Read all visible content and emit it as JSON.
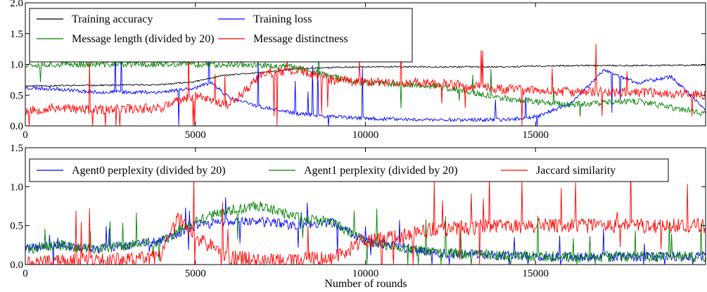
{
  "xlabel": "Number of rounds",
  "chart_data": [
    {
      "type": "line",
      "xlim": [
        0,
        20000
      ],
      "ylim": [
        0,
        2.0
      ],
      "x_ticks": [
        0,
        5000,
        10000,
        15000
      ],
      "y_ticks": [
        0.0,
        0.5,
        1.0,
        1.5,
        2.0
      ],
      "x_tick_labels": [
        "0",
        "5000",
        "10000",
        "15000"
      ],
      "y_tick_labels": [
        "0.0",
        "0.5",
        "1.0",
        "1.5",
        "2.0"
      ],
      "legend_position": "top-left",
      "legend_columns": 2,
      "grid": false,
      "series": [
        {
          "name": "Training accuracy",
          "color": "#000000",
          "seed": 11,
          "noise": 0.012,
          "spike_prob": 0.0,
          "spike_amp": 0.0,
          "x": [
            0,
            2000,
            4000,
            5000,
            5800,
            6500,
            7000,
            8000,
            9000,
            10000,
            12000,
            14000,
            16000,
            18000,
            20000
          ],
          "y": [
            0.65,
            0.66,
            0.67,
            0.72,
            0.82,
            0.85,
            0.87,
            0.93,
            0.95,
            0.96,
            0.96,
            0.96,
            0.98,
            0.98,
            0.99
          ]
        },
        {
          "name": "Training loss",
          "color": "#0000ff",
          "seed": 23,
          "noise": 0.03,
          "spike_prob": 0.012,
          "spike_amp": 0.6,
          "x": [
            0,
            1000,
            2000,
            4000,
            5000,
            5500,
            6000,
            7000,
            8000,
            9000,
            10000,
            12000,
            14000,
            15000,
            16000,
            17000,
            18000,
            19000,
            20000
          ],
          "y": [
            0.62,
            0.6,
            0.55,
            0.55,
            0.62,
            0.7,
            0.45,
            0.3,
            0.2,
            0.15,
            0.12,
            0.1,
            0.1,
            0.15,
            0.35,
            0.9,
            0.7,
            0.8,
            0.25
          ]
        },
        {
          "name": "Message length (divided by 20)",
          "color": "#008000",
          "seed": 37,
          "noise": 0.05,
          "spike_prob": 0.01,
          "spike_amp": 0.3,
          "x": [
            0,
            5000,
            6500,
            7000,
            8000,
            9000,
            10000,
            12000,
            14000,
            16000,
            18000,
            20000
          ],
          "y": [
            1.0,
            1.0,
            1.0,
            0.98,
            0.95,
            0.8,
            0.7,
            0.65,
            0.45,
            0.35,
            0.4,
            0.2
          ]
        },
        {
          "name": "Message distinctness",
          "color": "#ff0000",
          "seed": 53,
          "noise": 0.08,
          "spike_prob": 0.04,
          "spike_amp": 0.6,
          "x": [
            0,
            1000,
            2000,
            3000,
            4000,
            5000,
            6000,
            7000,
            8000,
            9000,
            10000,
            12000,
            14000,
            16000,
            18000,
            20000
          ],
          "y": [
            0.25,
            0.3,
            0.25,
            0.28,
            0.3,
            0.5,
            0.35,
            0.85,
            0.9,
            0.75,
            0.72,
            0.7,
            0.6,
            0.55,
            0.55,
            0.5
          ]
        }
      ]
    },
    {
      "type": "line",
      "xlim": [
        0,
        20000
      ],
      "ylim": [
        0,
        1.5
      ],
      "x_ticks": [
        0,
        5000,
        10000,
        15000
      ],
      "y_ticks": [
        0.0,
        0.5,
        1.0,
        1.5
      ],
      "x_tick_labels": [
        "0",
        "5000",
        "10000",
        "15000"
      ],
      "y_tick_labels": [
        "0.0",
        "0.5",
        "1.0",
        "1.5"
      ],
      "legend_position": "top",
      "legend_columns": 3,
      "grid": false,
      "series": [
        {
          "name": "Agent0 perplexity (divided by 20)",
          "color": "#0000ff",
          "seed": 71,
          "noise": 0.06,
          "spike_prob": 0.025,
          "spike_amp": 0.25,
          "x": [
            0,
            1000,
            2000,
            3000,
            4000,
            5000,
            6000,
            7000,
            8000,
            9000,
            10000,
            12000,
            14000,
            16000,
            18000,
            20000
          ],
          "y": [
            0.2,
            0.25,
            0.2,
            0.25,
            0.3,
            0.5,
            0.55,
            0.55,
            0.5,
            0.55,
            0.3,
            0.15,
            0.12,
            0.1,
            0.1,
            0.1
          ]
        },
        {
          "name": "Agent1 perplexity (divided by 20)",
          "color": "#008000",
          "seed": 89,
          "noise": 0.07,
          "spike_prob": 0.03,
          "spike_amp": 0.35,
          "x": [
            0,
            1000,
            2000,
            3000,
            4000,
            5000,
            6000,
            7000,
            8000,
            9000,
            10000,
            12000,
            14000,
            16000,
            18000,
            20000
          ],
          "y": [
            0.2,
            0.25,
            0.2,
            0.25,
            0.3,
            0.55,
            0.7,
            0.75,
            0.6,
            0.55,
            0.3,
            0.15,
            0.12,
            0.1,
            0.1,
            0.1
          ]
        },
        {
          "name": "Jaccard similarity",
          "color": "#ff0000",
          "seed": 97,
          "noise": 0.1,
          "spike_prob": 0.04,
          "spike_amp": 0.5,
          "x": [
            0,
            1000,
            2000,
            3000,
            4000,
            4500,
            5000,
            6000,
            7000,
            8000,
            9000,
            10000,
            11000,
            12000,
            14000,
            16000,
            18000,
            20000
          ],
          "y": [
            0.03,
            0.03,
            0.05,
            0.05,
            0.1,
            0.6,
            0.35,
            0.1,
            0.05,
            0.05,
            0.08,
            0.3,
            0.35,
            0.45,
            0.5,
            0.5,
            0.5,
            0.5
          ]
        }
      ]
    }
  ]
}
